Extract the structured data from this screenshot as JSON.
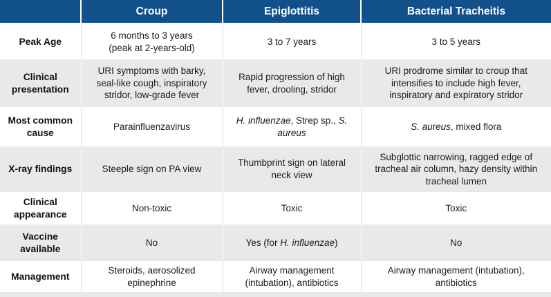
{
  "colors": {
    "header_bg": "#12508c",
    "header_text": "#ffffff",
    "row_bg": "#ffffff",
    "row_alt_bg": "#e9e9e9",
    "body_text": "#1a1a1a"
  },
  "chart_data": {
    "type": "table",
    "columns": [
      "",
      "Croup",
      "Epiglottitis",
      "Bacterial Tracheitis"
    ],
    "rows": [
      {
        "label": "Peak Age",
        "cells": [
          "6 months to 3 years\n(peak at 2-years-old)",
          "3 to 7 years",
          "3 to 5 years"
        ]
      },
      {
        "label": "Clinical presentation",
        "cells": [
          "URI symptoms with barky, seal-like cough, inspiratory stridor, low-grade fever",
          "Rapid progression of high fever, drooling, stridor",
          "URI prodrome similar to croup that intensifies to include high fever, inspiratory and expiratory stridor"
        ]
      },
      {
        "label": "Most common cause",
        "cells": [
          "Parainfluenzavirus",
          [
            {
              "t": "H. influenzae",
              "i": true
            },
            {
              "t": ", Strep sp., ",
              "i": false
            },
            {
              "t": "S. aureus",
              "i": true
            }
          ],
          [
            {
              "t": "S. aureus",
              "i": true
            },
            {
              "t": ", mixed flora",
              "i": false
            }
          ]
        ]
      },
      {
        "label": "X-ray findings",
        "cells": [
          "Steeple sign on PA view",
          "Thumbprint sign on lateral neck view",
          "Subglottic narrowing, ragged edge of tracheal air column, hazy density within tracheal lumen"
        ]
      },
      {
        "label": "Clinical appearance",
        "cells": [
          "Non-toxic",
          "Toxic",
          "Toxic"
        ]
      },
      {
        "label": "Vaccine available",
        "cells": [
          "No",
          [
            {
              "t": "Yes (for ",
              "i": false
            },
            {
              "t": "H. influenzae",
              "i": true
            },
            {
              "t": ")",
              "i": false
            }
          ],
          "No"
        ]
      },
      {
        "label": "Management",
        "cells": [
          "Steroids, aerosolized epinephrine",
          "Airway management (intubation), antibiotics",
          "Airway management (intubation), antibiotics"
        ]
      }
    ]
  }
}
